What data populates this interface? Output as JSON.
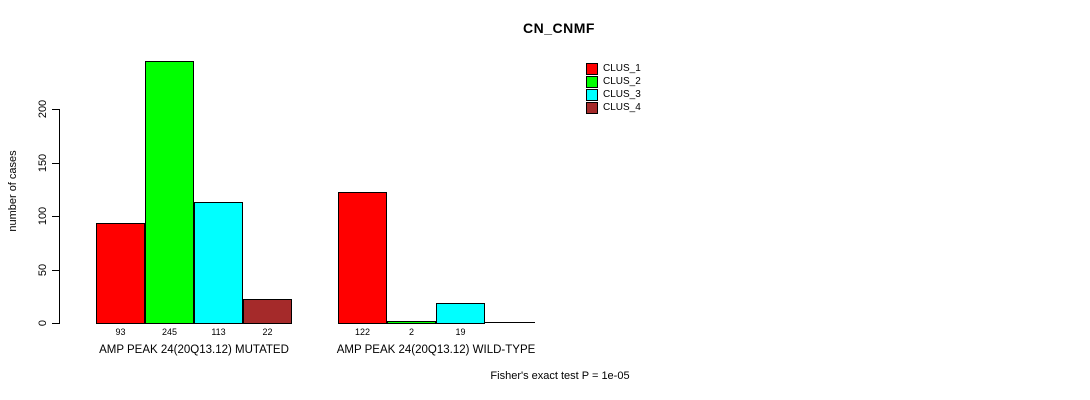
{
  "chart_data": {
    "type": "grouped_bar",
    "title": "CN_CNMF",
    "ylabel": "number of cases",
    "xlabel": "",
    "footnote": "Fisher's exact test P = 1e-05",
    "yticks": [
      0,
      50,
      100,
      150,
      200
    ],
    "ylim": [
      0,
      250
    ],
    "grid": false,
    "legend_position": "top-right",
    "series": [
      "CLUS_1",
      "CLUS_2",
      "CLUS_3",
      "CLUS_4"
    ],
    "colors": [
      "#ff0000",
      "#00ff00",
      "#00ffff",
      "#a52a2a"
    ],
    "groups": [
      {
        "label": "AMP PEAK 24(20Q13.12) MUTATED",
        "values": [
          93,
          245,
          113,
          22
        ],
        "bar_labels": [
          "93",
          "245",
          "113",
          "22"
        ]
      },
      {
        "label": "AMP PEAK 24(20Q13.12) WILD-TYPE",
        "values": [
          122,
          2,
          19,
          0
        ],
        "bar_labels": [
          "122",
          "2",
          "19",
          ""
        ]
      }
    ]
  }
}
